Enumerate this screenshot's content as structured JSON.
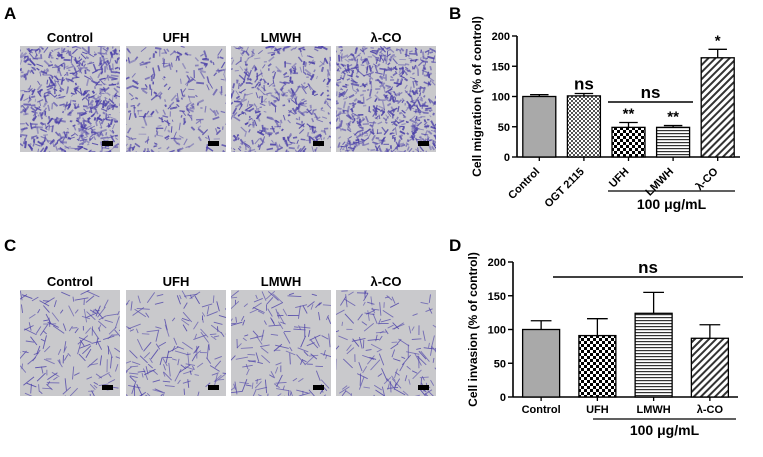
{
  "panels": {
    "A": {
      "letter": "A",
      "images": [
        {
          "label": "Control",
          "stain": "dense"
        },
        {
          "label": "UFH",
          "stain": "light"
        },
        {
          "label": "LMWH",
          "stain": "medium"
        },
        {
          "label": "λ-CO",
          "stain": "dense"
        }
      ]
    },
    "C": {
      "letter": "C",
      "images": [
        {
          "label": "Control",
          "stain": "sparse"
        },
        {
          "label": "UFH",
          "stain": "sparse"
        },
        {
          "label": "LMWH",
          "stain": "sparse"
        },
        {
          "label": "λ-CO",
          "stain": "sparse"
        }
      ]
    }
  },
  "colors": {
    "stain": "#4a3fa8",
    "background": "#c9c9cc",
    "bar_fill": "#a9a9a9"
  },
  "chart_data": [
    {
      "panel": "B",
      "letter": "B",
      "type": "bar",
      "ylabel": "Cell migration (% of control)",
      "ylim": [
        0,
        200
      ],
      "yticks": [
        0,
        50,
        100,
        150,
        200
      ],
      "categories": [
        "Control",
        "OGT 2115",
        "UFH",
        "LMWH",
        "λ-CO"
      ],
      "values": [
        100,
        101,
        49,
        49,
        164
      ],
      "errors": [
        3,
        4,
        8,
        3,
        14
      ],
      "patterns": [
        "solid",
        "dots",
        "checker",
        "hlines",
        "diag"
      ],
      "significance": [
        "",
        "ns",
        "**",
        "**",
        "*"
      ],
      "bracket_label": "ns",
      "group_label": "100 μg/mL"
    },
    {
      "panel": "D",
      "letter": "D",
      "type": "bar",
      "ylabel": "Cell invasion (% of control)",
      "ylim": [
        0,
        200
      ],
      "yticks": [
        0,
        50,
        100,
        150,
        200
      ],
      "categories": [
        "Control",
        "UFH",
        "LMWH",
        "λ-CO"
      ],
      "values": [
        100,
        91,
        124,
        87
      ],
      "errors": [
        13,
        25,
        31,
        20
      ],
      "patterns": [
        "solid",
        "checker",
        "hlines",
        "diag"
      ],
      "significance": [
        "",
        "",
        "",
        ""
      ],
      "bracket_label": "ns",
      "group_label": "100 μg/mL"
    }
  ]
}
